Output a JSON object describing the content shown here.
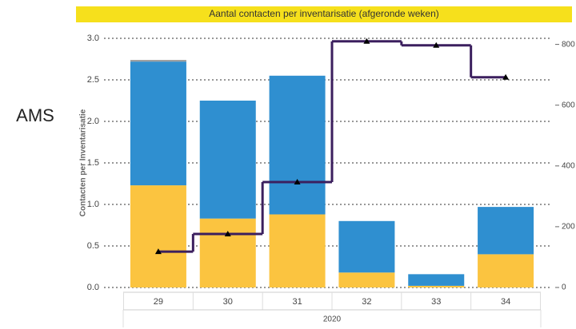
{
  "side_label": "AMS",
  "chart_data": {
    "type": "bar",
    "title": "Aantal contacten per inventarisatie (afgeronde weken)",
    "y_label": "Contacten per Inventarisatie",
    "categories": [
      "29",
      "30",
      "31",
      "32",
      "33",
      "34"
    ],
    "x_group": "2020",
    "stacked": true,
    "series": [
      {
        "color": "#fbc440",
        "values": [
          1.23,
          0.83,
          0.88,
          0.18,
          0.02,
          0.4
        ]
      },
      {
        "color": "#2f8fd0",
        "values": [
          1.49,
          1.42,
          1.67,
          0.62,
          0.14,
          0.57
        ]
      },
      {
        "color": "#9e9e9e",
        "values": [
          0.02,
          0,
          0,
          0,
          0,
          0
        ]
      },
      {
        "type": "line",
        "axis": "y2",
        "color": "#3b1f5e",
        "values": [
          118,
          176,
          347,
          810,
          797,
          692
        ]
      }
    ],
    "ylim": [
      0,
      3
    ],
    "yticks": [
      {
        "value": 0,
        "label": "0.0"
      },
      0.5,
      {
        "value": 1,
        "label": "1.0"
      },
      1.5,
      {
        "value": 2,
        "label": "2.0"
      },
      2.5,
      {
        "value": 3,
        "label": "3.0"
      }
    ],
    "y2lim": [
      0,
      820
    ],
    "y2ticks": [
      0,
      200,
      400,
      600,
      800
    ],
    "grid": true
  }
}
